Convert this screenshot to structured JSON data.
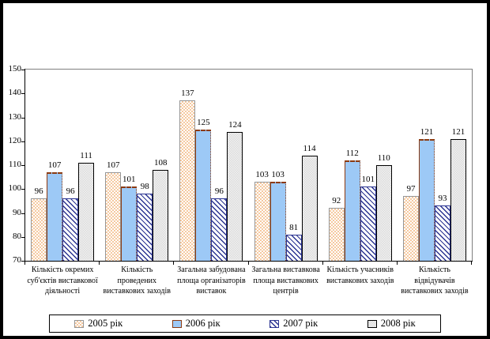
{
  "chart_data": {
    "type": "bar",
    "title": "",
    "xlabel": "",
    "ylabel": "",
    "ylim": [
      70,
      150
    ],
    "yticks": [
      70,
      80,
      90,
      100,
      110,
      120,
      130,
      140,
      150
    ],
    "grid": false,
    "legend_position": "bottom",
    "categories": [
      "Кількість окремих суб'єктів виставкової діяльності",
      "Кількість проведених виставкових заходів",
      "Загальна забудована площа організаторів виставок",
      "Загальна виставкова площа виставкових центрів",
      "Кількість учасників виставкових заходів",
      "Кількість відвідувачів виставкових заходів"
    ],
    "series": [
      {
        "name": "2005 рік",
        "pattern": "peach-dotted-fill",
        "color": "#F5C9A0",
        "values": [
          96,
          107,
          137,
          103,
          92,
          97
        ]
      },
      {
        "name": "2006 рік",
        "pattern": "solid-light-blue",
        "color": "#9DC9F6",
        "values": [
          107,
          101,
          125,
          103,
          112,
          121
        ]
      },
      {
        "name": "2007 рік",
        "pattern": "navy-diagonal-hatch",
        "color": "#2B3492",
        "values": [
          96,
          98,
          96,
          81,
          101,
          93
        ]
      },
      {
        "name": "2008 рік",
        "pattern": "gray-textured",
        "color": "#F1F1F1",
        "values": [
          111,
          108,
          124,
          114,
          110,
          121
        ]
      }
    ]
  }
}
